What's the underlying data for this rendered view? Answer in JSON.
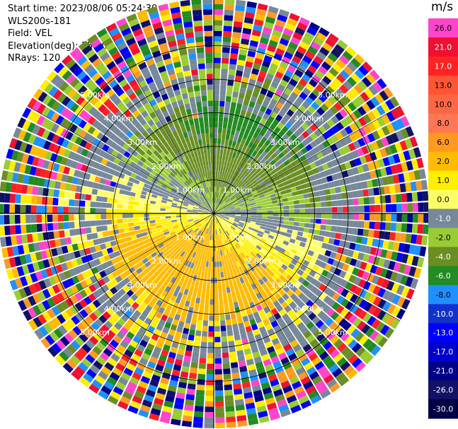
{
  "chart_data": {
    "type": "heatmap",
    "subtype": "radar-ppi",
    "metadata_lines": [
      "Start time: 2023/08/06 05:24:30",
      "WLS200s-181",
      "Field: VEL",
      "Elevation(deg): 35.30",
      "NRays: 120"
    ],
    "field": "VEL",
    "nrays": 120,
    "range_rings_km": [
      1.0,
      2.0,
      3.0,
      4.0,
      5.0
    ],
    "ring_labels": [
      "1.00km",
      "2.00km",
      "3.00km",
      "4.00km",
      "5.00km"
    ],
    "max_range_km": 6.4,
    "colorbar": {
      "unit": "m/s",
      "ticks": [
        "26.0",
        "21.0",
        "17.0",
        "13.0",
        "10.0",
        "8.0",
        "6.0",
        "2.0",
        "1.0",
        "0.0",
        "-1.0",
        "-2.0",
        "-4.0",
        "-6.0",
        "-8.0",
        "-10.0",
        "-13.0",
        "-17.0",
        "-21.0",
        "-26.0",
        "-30.0"
      ],
      "colors": [
        "#ff44cc",
        "#ee1133",
        "#ff2222",
        "#ff5533",
        "#ff6644",
        "#ff7755",
        "#ff9922",
        "#ffbb00",
        "#ffee00",
        "#ffff66",
        "#778899",
        "#99cc33",
        "#6b8e23",
        "#228b22",
        "#1e90ff",
        "#1133cc",
        "#0000ff",
        "#0000cc",
        "#000088",
        "#111166",
        "#000044"
      ]
    }
  }
}
